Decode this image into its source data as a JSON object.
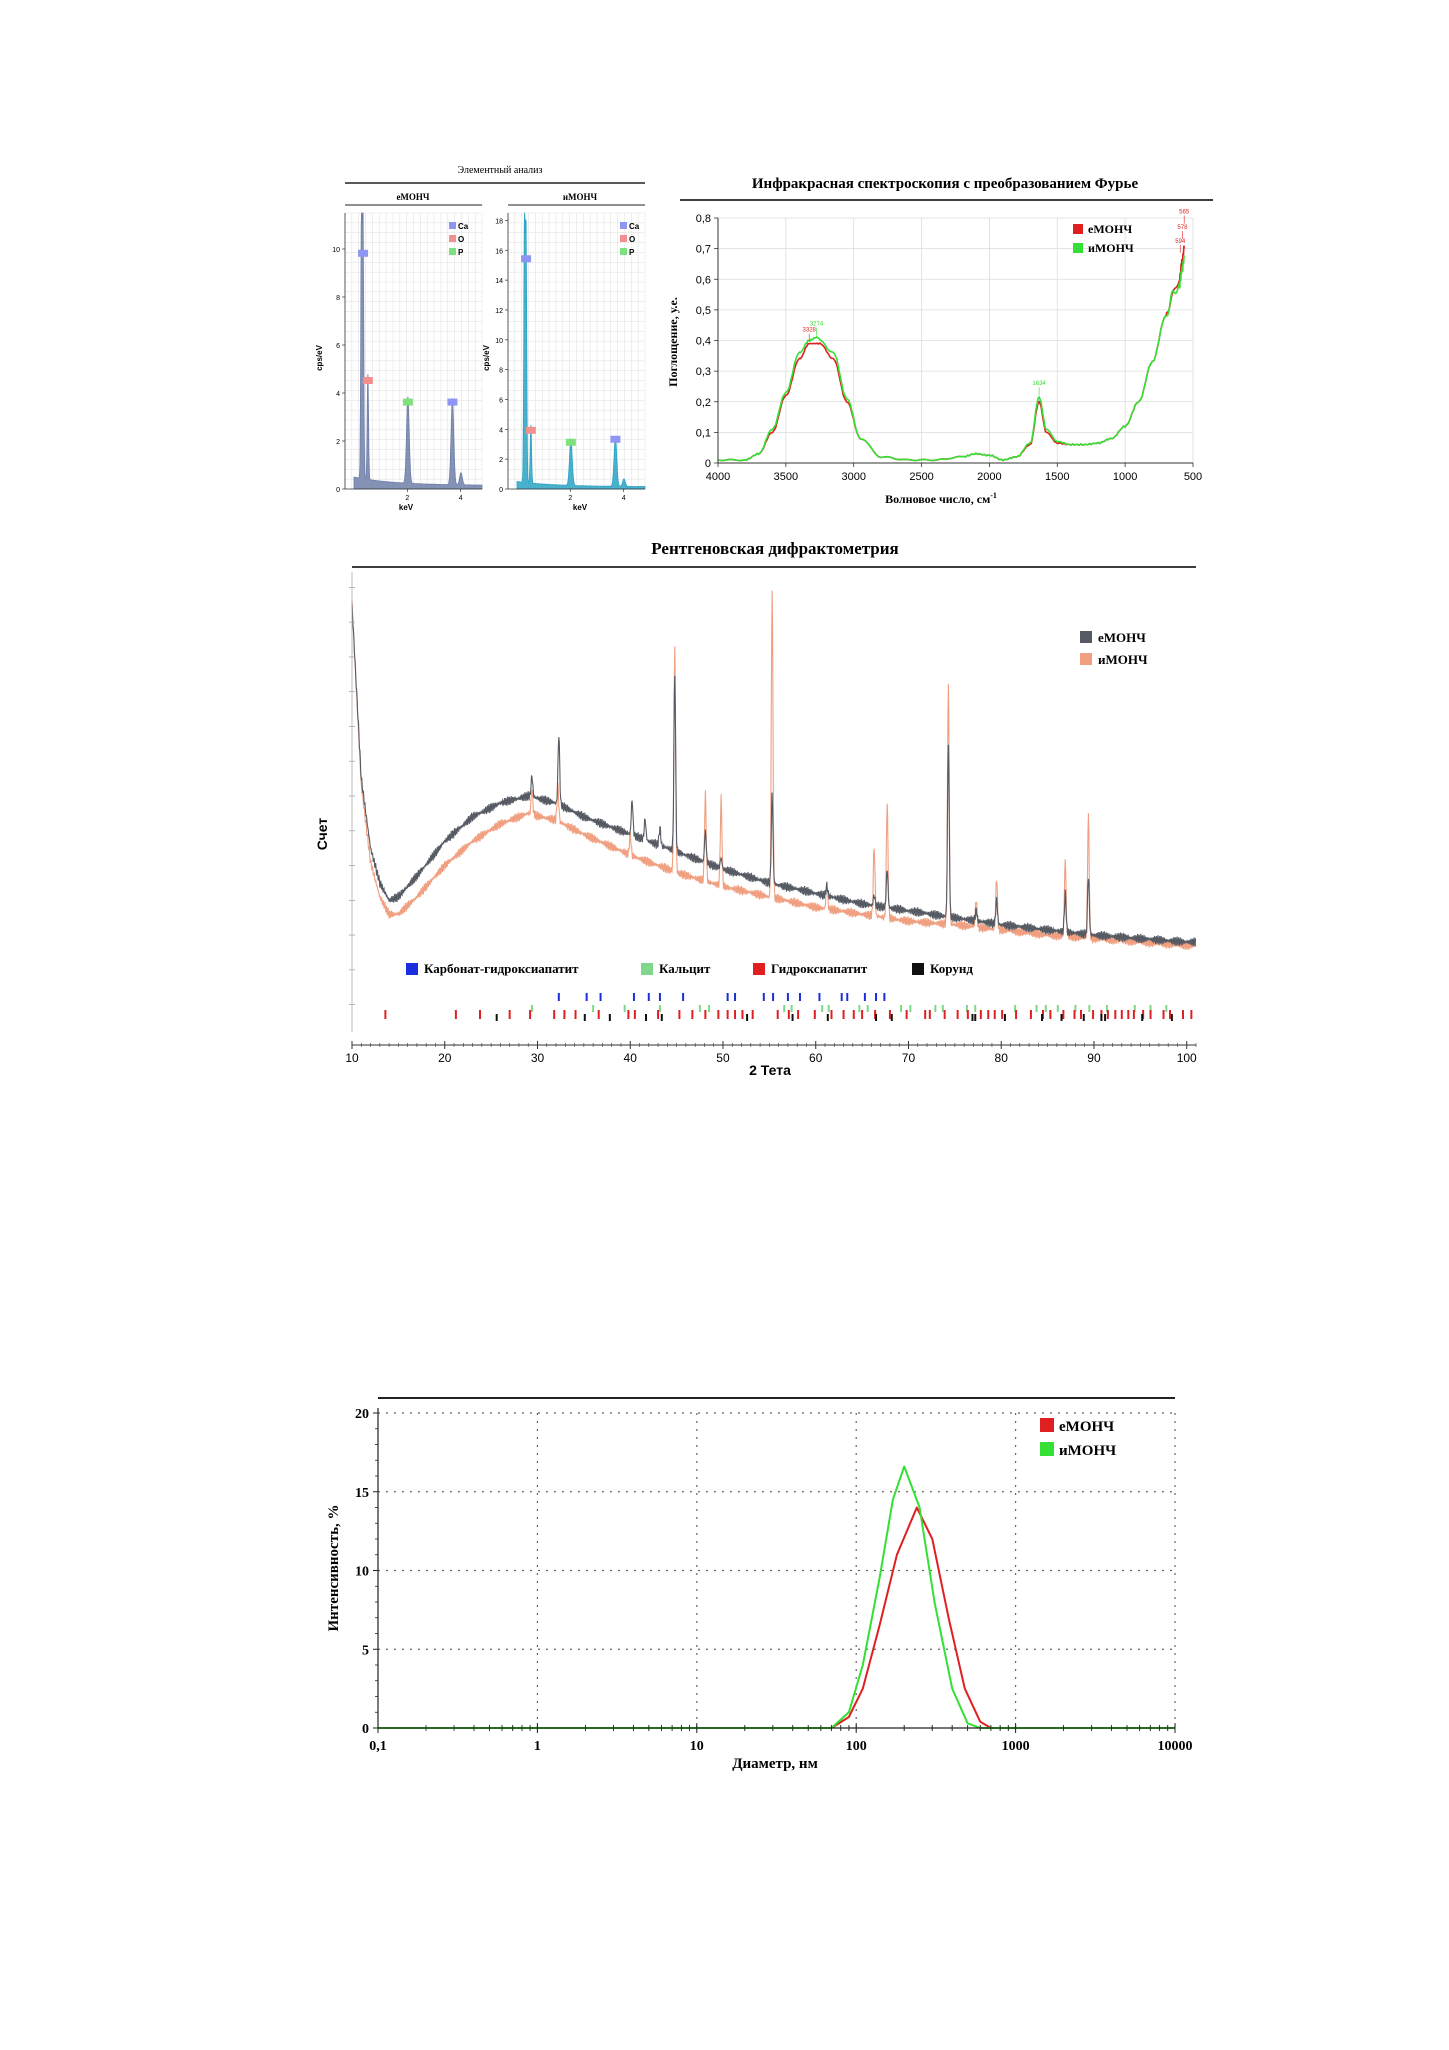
{
  "colors": {
    "e": "#e02020",
    "i": "#33e033",
    "xrd_e": "#555a63",
    "xrd_i": "#f0a080",
    "eds_e": "#6f7fa8",
    "eds_i": "#2aa3c4",
    "ca": "#8f95f2",
    "o": "#f28f8f",
    "p": "#7ee07e",
    "carb": "#1a2ee0",
    "calc": "#7fd88a",
    "hydr": "#e02020",
    "kor": "#111111"
  },
  "eds": {
    "title": "Элементный анализ",
    "xlabel": "keV",
    "ylabel": "cps/eV",
    "legend": [
      "Ca",
      "O",
      "P"
    ],
    "panels": [
      {
        "name": "еМОНЧ",
        "yticks": [
          "0",
          "2",
          "4",
          "6",
          "8",
          "10"
        ],
        "ymax": 11.5,
        "xticks": [
          "2",
          "4"
        ],
        "xmax": 4.8,
        "peaks": [
          {
            "kev": 0.28,
            "h": 11.2
          },
          {
            "kev": 0.34,
            "h": 10.6
          },
          {
            "kev": 0.52,
            "h": 4.4
          },
          {
            "kev": 2.02,
            "h": 3.6
          },
          {
            "kev": 3.69,
            "h": 3.6
          },
          {
            "kev": 4.01,
            "h": 0.5
          }
        ],
        "markers": [
          {
            "el": "Ca",
            "kev": 0.34,
            "y": 9.8
          },
          {
            "el": "O",
            "kev": 0.52,
            "y": 4.5
          },
          {
            "el": "P",
            "kev": 2.02,
            "y": 3.6
          },
          {
            "el": "Ca",
            "kev": 3.69,
            "y": 3.6
          }
        ]
      },
      {
        "name": "иМОНЧ",
        "yticks": [
          "0",
          "2",
          "4",
          "6",
          "8",
          "10",
          "12",
          "14",
          "16",
          "18"
        ],
        "ymax": 18.5,
        "xticks": [
          "2",
          "4"
        ],
        "xmax": 4.8,
        "peaks": [
          {
            "kev": 0.28,
            "h": 17.8
          },
          {
            "kev": 0.34,
            "h": 16.5
          },
          {
            "kev": 0.52,
            "h": 3.9
          },
          {
            "kev": 2.02,
            "h": 3.1
          },
          {
            "kev": 3.69,
            "h": 3.3
          },
          {
            "kev": 4.01,
            "h": 0.5
          }
        ],
        "markers": [
          {
            "el": "Ca",
            "kev": 0.34,
            "y": 15.4
          },
          {
            "el": "O",
            "kev": 0.52,
            "y": 3.9
          },
          {
            "el": "P",
            "kev": 2.02,
            "y": 3.1
          },
          {
            "el": "Ca",
            "kev": 3.69,
            "y": 3.3
          }
        ]
      }
    ]
  },
  "ftir": {
    "title": "Инфракрасная спектроскопия с преобразованием Фурье",
    "xlabel": "Волновое число, см",
    "xlabel_sup": "-1",
    "ylabel": "Поглощение, у.е.",
    "xticks": [
      "4000",
      "3500",
      "3000",
      "2500",
      "2000",
      "1500",
      "1000",
      "500"
    ],
    "yticks": [
      "0",
      "0,1",
      "0,2",
      "0,3",
      "0,4",
      "0,5",
      "0,6",
      "0,7",
      "0,8"
    ],
    "legend": [
      "еМОНЧ",
      "иМОНЧ"
    ],
    "peak_labels": [
      {
        "text": "3274",
        "x": 3274,
        "y": 0.41,
        "series": "i"
      },
      {
        "text": "3328",
        "x": 3328,
        "y": 0.39,
        "series": "e"
      },
      {
        "text": "1634",
        "x": 1634,
        "y": 0.215,
        "series": "i"
      },
      {
        "text": "565",
        "x": 565,
        "y": 0.775,
        "series": "e"
      },
      {
        "text": "578",
        "x": 578,
        "y": 0.725,
        "series": "e"
      },
      {
        "text": "594",
        "x": 594,
        "y": 0.68,
        "series": "e"
      }
    ],
    "chart_data": {
      "type": "line",
      "series": [
        {
          "name": "еМОНЧ",
          "x": [
            4000,
            3800,
            3700,
            3600,
            3500,
            3400,
            3328,
            3250,
            3150,
            3050,
            2950,
            2800,
            2600,
            2400,
            2200,
            2100,
            2000,
            1900,
            1800,
            1700,
            1634,
            1580,
            1500,
            1400,
            1300,
            1200,
            1100,
            1000,
            900,
            800,
            700,
            650,
            600,
            580,
            565
          ],
          "y": [
            0.01,
            0.01,
            0.03,
            0.1,
            0.22,
            0.34,
            0.39,
            0.39,
            0.34,
            0.2,
            0.08,
            0.02,
            0.01,
            0.01,
            0.02,
            0.03,
            0.025,
            0.01,
            0.02,
            0.06,
            0.2,
            0.1,
            0.065,
            0.06,
            0.06,
            0.065,
            0.08,
            0.12,
            0.2,
            0.33,
            0.48,
            0.55,
            0.6,
            0.66,
            0.7
          ]
        },
        {
          "name": "иМОНЧ",
          "x": [
            4000,
            3800,
            3700,
            3600,
            3500,
            3400,
            3328,
            3274,
            3150,
            3050,
            2950,
            2800,
            2600,
            2400,
            2200,
            2100,
            2000,
            1900,
            1800,
            1700,
            1634,
            1580,
            1500,
            1400,
            1300,
            1200,
            1100,
            1000,
            900,
            800,
            700,
            650,
            600,
            580,
            565
          ],
          "y": [
            0.01,
            0.01,
            0.03,
            0.11,
            0.23,
            0.36,
            0.4,
            0.41,
            0.36,
            0.21,
            0.08,
            0.02,
            0.01,
            0.01,
            0.02,
            0.03,
            0.025,
            0.01,
            0.02,
            0.065,
            0.215,
            0.11,
            0.07,
            0.06,
            0.06,
            0.065,
            0.08,
            0.12,
            0.2,
            0.33,
            0.48,
            0.55,
            0.58,
            0.63,
            0.67
          ]
        }
      ]
    }
  },
  "xrd": {
    "title": "Рентгеновская дифрактометрия",
    "xlabel": "2 Тета",
    "ylabel": "Счет",
    "xticks": [
      "10",
      "20",
      "30",
      "40",
      "50",
      "60",
      "70",
      "80",
      "90",
      "100"
    ],
    "legend": [
      "еМОНЧ",
      "иМОНЧ"
    ],
    "phase_legend": [
      {
        "label": "Карбонат-гидроксиапатит",
        "key": "carb"
      },
      {
        "label": "Кальцит",
        "key": "calc"
      },
      {
        "label": "Гидроксиапатит",
        "key": "hydr"
      },
      {
        "label": "Корунд",
        "key": "kor"
      }
    ],
    "baseline_e": [
      [
        10,
        12.0
      ],
      [
        11,
        7.0
      ],
      [
        12,
        5.0
      ],
      [
        13,
        4.0
      ],
      [
        14,
        3.5
      ],
      [
        15,
        3.6
      ],
      [
        17,
        4.2
      ],
      [
        20,
        5.2
      ],
      [
        23,
        5.9
      ],
      [
        26,
        6.3
      ],
      [
        29,
        6.5
      ],
      [
        32,
        6.3
      ],
      [
        35,
        5.9
      ],
      [
        40,
        5.4
      ],
      [
        45,
        4.9
      ],
      [
        50,
        4.4
      ],
      [
        55,
        4.0
      ],
      [
        60,
        3.7
      ],
      [
        65,
        3.4
      ],
      [
        70,
        3.2
      ],
      [
        75,
        3.0
      ],
      [
        80,
        2.8
      ],
      [
        85,
        2.65
      ],
      [
        90,
        2.5
      ],
      [
        95,
        2.4
      ],
      [
        100,
        2.3
      ],
      [
        101,
        2.3
      ]
    ],
    "baseline_i": [
      [
        10,
        12.0
      ],
      [
        11,
        6.8
      ],
      [
        12,
        4.6
      ],
      [
        13,
        3.6
      ],
      [
        14,
        3.1
      ],
      [
        15,
        3.1
      ],
      [
        17,
        3.6
      ],
      [
        20,
        4.5
      ],
      [
        23,
        5.2
      ],
      [
        26,
        5.7
      ],
      [
        29,
        6.0
      ],
      [
        32,
        5.8
      ],
      [
        35,
        5.4
      ],
      [
        40,
        4.8
      ],
      [
        45,
        4.3
      ],
      [
        50,
        3.9
      ],
      [
        55,
        3.6
      ],
      [
        60,
        3.3
      ],
      [
        65,
        3.1
      ],
      [
        70,
        2.9
      ],
      [
        75,
        2.8
      ],
      [
        80,
        2.65
      ],
      [
        85,
        2.5
      ],
      [
        90,
        2.4
      ],
      [
        95,
        2.3
      ],
      [
        100,
        2.2
      ],
      [
        101,
        2.2
      ]
    ],
    "peaks_e": [
      [
        29.4,
        0.6
      ],
      [
        32.3,
        2.0
      ],
      [
        40.2,
        1.0
      ],
      [
        41.6,
        0.6
      ],
      [
        43.2,
        0.5
      ],
      [
        44.8,
        5.1
      ],
      [
        48.1,
        0.9
      ],
      [
        49.8,
        0.3
      ],
      [
        55.3,
        2.6
      ],
      [
        61.2,
        0.3
      ],
      [
        66.3,
        0.3
      ],
      [
        67.7,
        1.1
      ],
      [
        74.3,
        5.0
      ],
      [
        77.3,
        0.3
      ],
      [
        79.5,
        0.7
      ],
      [
        86.9,
        1.1
      ],
      [
        89.4,
        1.7
      ]
    ],
    "peaks_i": [
      [
        29.4,
        0.7
      ],
      [
        32.2,
        1.0
      ],
      [
        40.0,
        0.6
      ],
      [
        44.8,
        6.5
      ],
      [
        48.1,
        2.5
      ],
      [
        49.8,
        2.5
      ],
      [
        55.3,
        8.9
      ],
      [
        61.2,
        0.7
      ],
      [
        66.3,
        2.0
      ],
      [
        67.7,
        3.3
      ],
      [
        74.3,
        7.0
      ],
      [
        77.3,
        0.8
      ],
      [
        79.5,
        1.5
      ],
      [
        86.9,
        2.2
      ],
      [
        89.4,
        3.5
      ]
    ],
    "ticks_carb": [
      32.3,
      35.3,
      36.8,
      40.4,
      42.0,
      43.2,
      45.7,
      50.5,
      51.3,
      54.4,
      55.4,
      57.0,
      58.3,
      60.4,
      62.8,
      63.4,
      65.3,
      66.5,
      67.4
    ],
    "ticks_calc": [
      29.4,
      36.0,
      39.4,
      43.2,
      47.5,
      48.5,
      56.6,
      57.4,
      60.7,
      61.4,
      64.7,
      65.6,
      69.2,
      70.2,
      72.9,
      73.7,
      76.3,
      77.2,
      81.5,
      83.8,
      84.8,
      86.1,
      88.0,
      89.5,
      91.4,
      94.4,
      96.1,
      97.8
    ],
    "ticks_hydr": [
      13.6,
      21.2,
      23.8,
      27.0,
      29.2,
      31.8,
      32.9,
      34.1,
      36.6,
      39.8,
      40.5,
      43.0,
      45.3,
      46.7,
      48.1,
      49.5,
      50.5,
      51.3,
      52.1,
      53.2,
      55.9,
      57.1,
      58.1,
      59.9,
      61.7,
      63.0,
      64.1,
      65.0,
      66.4,
      68.0,
      69.8,
      71.8,
      72.3,
      73.9,
      75.3,
      76.4,
      77.8,
      78.6,
      79.3,
      80.1,
      81.6,
      83.2,
      84.5,
      85.3,
      86.7,
      87.9,
      88.6,
      89.9,
      90.8,
      91.5,
      92.3,
      93.0,
      93.7,
      94.3,
      95.3,
      96.1,
      97.5,
      98.2,
      99.6,
      100.5
    ],
    "ticks_kor": [
      25.6,
      35.1,
      37.8,
      41.7,
      43.4,
      52.6,
      57.5,
      61.3,
      66.5,
      68.2,
      76.9,
      77.2,
      80.4,
      84.4,
      86.5,
      88.9,
      90.8,
      91.2,
      95.2,
      98.4
    ]
  },
  "dls": {
    "xlabel": "Диаметр, нм",
    "ylabel": "Интенсивность, %",
    "xticks": [
      "0,1",
      "1",
      "10",
      "100",
      "1000",
      "10000"
    ],
    "yticks": [
      "0",
      "5",
      "10",
      "15",
      "20"
    ],
    "legend": [
      "еМОНЧ",
      "иМОНЧ"
    ],
    "chart_data": {
      "type": "line",
      "xscale": "log",
      "xlim": [
        0.1,
        10000
      ],
      "ylim": [
        0,
        20
      ],
      "series": [
        {
          "name": "еМОНЧ",
          "x": [
            0.1,
            70,
            90,
            110,
            140,
            180,
            240,
            300,
            380,
            480,
            600,
            700,
            10000
          ],
          "y": [
            0,
            0,
            0.7,
            2.5,
            6.5,
            11.0,
            14.0,
            12.0,
            7.0,
            2.5,
            0.4,
            0,
            0
          ]
        },
        {
          "name": "иМОНЧ",
          "x": [
            0.1,
            70,
            90,
            110,
            140,
            170,
            200,
            250,
            310,
            400,
            500,
            600,
            10000
          ],
          "y": [
            0,
            0,
            1.0,
            4.0,
            9.5,
            14.5,
            16.6,
            14.0,
            8.0,
            2.5,
            0.3,
            0,
            0
          ]
        }
      ]
    }
  }
}
